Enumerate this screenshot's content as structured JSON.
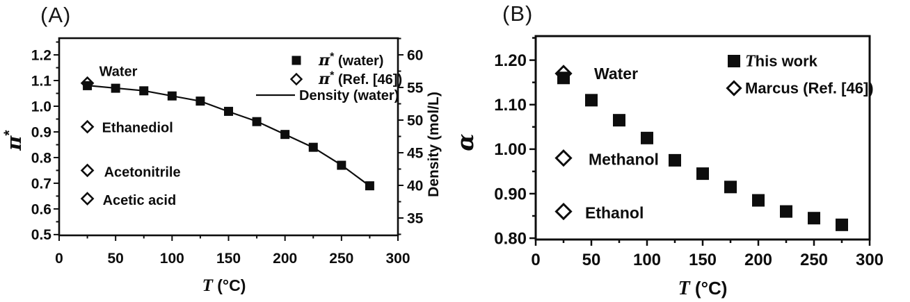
{
  "figure": {
    "background": "#ffffff",
    "ink": "#0d0d0d"
  },
  "chart_data": [
    {
      "type": "scatter",
      "panel_label": "(A)",
      "xlabel": "T (°C)",
      "xlim": [
        0,
        300
      ],
      "x_ticks": [
        "0",
        "50",
        "100",
        "150",
        "200",
        "250",
        "300"
      ],
      "x_tick_values": [
        0,
        50,
        100,
        150,
        200,
        250,
        300
      ],
      "x_minor_step": 25,
      "grid": "off",
      "y_left": {
        "label": "π*",
        "ticks": [
          "0.5",
          "0.6",
          "0.7",
          "0.8",
          "0.9",
          "1.0",
          "1.1",
          "1.2"
        ],
        "tick_values": [
          0.5,
          0.6,
          0.7,
          0.8,
          0.9,
          1.0,
          1.1,
          1.2
        ],
        "lim": [
          0.497,
          1.265
        ],
        "minor_step": 0.05
      },
      "y_right": {
        "label": "Density (mol/L)",
        "ticks": [
          "35",
          "40",
          "45",
          "50",
          "55",
          "60"
        ],
        "tick_values": [
          35,
          40,
          45,
          50,
          55,
          60
        ],
        "lim": [
          32.34,
          62.55
        ],
        "minor_step": 2.5
      },
      "series": [
        {
          "name": "Density (water)",
          "axis": "right",
          "style": "line",
          "x": [
            25,
            50,
            75,
            100,
            125,
            150,
            175,
            200,
            225,
            250,
            275
          ],
          "y": [
            55.3,
            54.9,
            54.5,
            53.7,
            52.9,
            51.3,
            49.8,
            47.8,
            45.8,
            43.1,
            39.9
          ]
        },
        {
          "name": "π* (Ref. [46])",
          "axis": "left",
          "style": "open-diamond",
          "points": [
            {
              "x": 25,
              "y": 1.09,
              "label": "Water",
              "dx": 17,
              "dy": -10
            },
            {
              "x": 25,
              "y": 0.92,
              "label": "Ethanediol",
              "dx": 21,
              "dy": 8
            },
            {
              "x": 25,
              "y": 0.75,
              "label": "Acetonitrile",
              "dx": 24,
              "dy": 9
            },
            {
              "x": 25,
              "y": 0.64,
              "label": "Acetic acid",
              "dx": 22,
              "dy": 9
            }
          ]
        },
        {
          "name": "π* (water)",
          "axis": "left",
          "style": "filled-square",
          "x": [
            25,
            50,
            75,
            100,
            125,
            150,
            175,
            200,
            225,
            250,
            275
          ],
          "y": [
            1.08,
            1.07,
            1.06,
            1.04,
            1.02,
            0.98,
            0.94,
            0.89,
            0.84,
            0.77,
            0.69
          ]
        }
      ],
      "legend": {
        "position": "top-right",
        "items": [
          {
            "marker": "filled-square",
            "label": "π* (water)"
          },
          {
            "marker": "open-diamond",
            "label": "π* (Ref. [46])"
          },
          {
            "marker": "line",
            "label": "Density (water)"
          }
        ]
      }
    },
    {
      "type": "scatter",
      "panel_label": "(B)",
      "xlabel": "T (°C)",
      "xlim": [
        0,
        300
      ],
      "x_ticks": [
        "0",
        "50",
        "100",
        "150",
        "200",
        "250",
        "300"
      ],
      "x_tick_values": [
        0,
        50,
        100,
        150,
        200,
        250,
        300
      ],
      "x_minor_step": 25,
      "grid": "off",
      "y_left": {
        "label": "α",
        "ticks": [
          "0.80",
          "0.90",
          "1.00",
          "1.10",
          "1.20"
        ],
        "tick_values": [
          0.8,
          0.9,
          1.0,
          1.1,
          1.2
        ],
        "lim": [
          0.797,
          1.254
        ],
        "minor_step": 0.05
      },
      "series": [
        {
          "name": "Marcus (Ref. [46])",
          "axis": "left",
          "style": "open-diamond",
          "points": [
            {
              "x": 25,
              "y": 1.17,
              "label": "Water",
              "dx": 44,
              "dy": 8
            },
            {
              "x": 25,
              "y": 0.98,
              "label": "Methanol",
              "dx": 36,
              "dy": 10
            },
            {
              "x": 25,
              "y": 0.86,
              "label": "Ethanol",
              "dx": 31,
              "dy": 10
            }
          ]
        },
        {
          "name": "This work",
          "axis": "left",
          "style": "filled-square",
          "x": [
            25,
            50,
            75,
            100,
            125,
            150,
            175,
            200,
            225,
            250,
            275
          ],
          "y": [
            1.16,
            1.11,
            1.065,
            1.025,
            0.975,
            0.945,
            0.915,
            0.885,
            0.86,
            0.845,
            0.83
          ]
        }
      ],
      "legend": {
        "position": "top-right",
        "items": [
          {
            "marker": "filled-square",
            "label": "This work"
          },
          {
            "marker": "open-diamond",
            "label": "Marcus (Ref. [46])"
          }
        ]
      }
    }
  ]
}
